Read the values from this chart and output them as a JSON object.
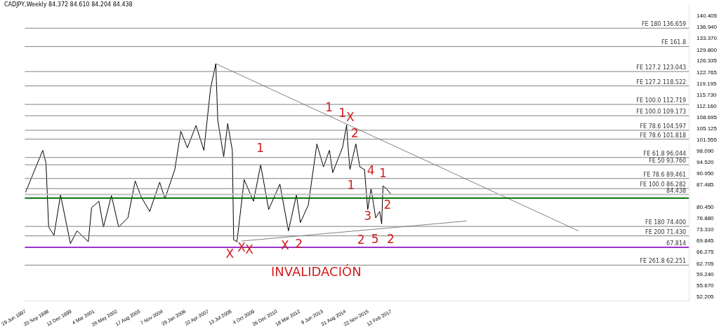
{
  "chart_data": {
    "type": "line",
    "title": "CADJPY,Weekly  84.372 84.610 84.204 84.438",
    "xlim": [
      "1997-06-15",
      "2033-02-01"
    ],
    "xticks": [
      {
        "value": "1997-06-29",
        "label": "29 Jun 1997"
      },
      {
        "value": "1998-09-20",
        "label": "20 Sep 1998"
      },
      {
        "value": "1999-12-12",
        "label": "12 Dec 1999"
      },
      {
        "value": "2001-03-04",
        "label": "4 Mar 2001"
      },
      {
        "value": "2002-05-26",
        "label": "26 May 2002"
      },
      {
        "value": "2003-08-17",
        "label": "17 Aug 2003"
      },
      {
        "value": "2004-11-07",
        "label": "7 Nov 2004"
      },
      {
        "value": "2006-01-29",
        "label": "29 Jan 2006"
      },
      {
        "value": "2007-04-22",
        "label": "22 Apr 2007"
      },
      {
        "value": "2008-07-13",
        "label": "13 Jul 2008"
      },
      {
        "value": "2009-10-04",
        "label": "4 Oct 2009"
      },
      {
        "value": "2010-12-26",
        "label": "26 Dec 2010"
      },
      {
        "value": "2012-03-18",
        "label": "18 Mar 2012"
      },
      {
        "value": "2013-06-09",
        "label": "9 Jun 2013"
      },
      {
        "value": "2014-08-31",
        "label": "31 Aug 2014"
      },
      {
        "value": "2015-11-22",
        "label": "22 Nov 2015"
      },
      {
        "value": "2017-02-12",
        "label": "12 Feb 2017"
      }
    ],
    "ylim": [
      51.0,
      143.8
    ],
    "yticks": [
      {
        "value": 52.205,
        "label": "52.205"
      },
      {
        "value": 55.67,
        "label": "55.670"
      },
      {
        "value": 59.24,
        "label": "59.240"
      },
      {
        "value": 62.705,
        "label": "62.705"
      },
      {
        "value": 66.275,
        "label": "66.275"
      },
      {
        "value": 69.845,
        "label": "69.845"
      },
      {
        "value": 73.31,
        "label": "73.310"
      },
      {
        "value": 76.88,
        "label": "76.880"
      },
      {
        "value": 80.45,
        "label": "80.450"
      },
      {
        "value": 87.485,
        "label": "87.485"
      },
      {
        "value": 90.95,
        "label": "90.950"
      },
      {
        "value": 94.52,
        "label": "94.520"
      },
      {
        "value": 98.09,
        "label": "98.090"
      },
      {
        "value": 101.555,
        "label": "101.555"
      },
      {
        "value": 105.125,
        "label": "105.125"
      },
      {
        "value": 108.695,
        "label": "108.695"
      },
      {
        "value": 112.16,
        "label": "112.160"
      },
      {
        "value": 115.73,
        "label": "115.730"
      },
      {
        "value": 119.195,
        "label": "119.195"
      },
      {
        "value": 122.765,
        "label": "122.765"
      },
      {
        "value": 126.335,
        "label": "126.335"
      },
      {
        "value": 129.8,
        "label": "129.800"
      },
      {
        "value": 133.37,
        "label": "133.370"
      },
      {
        "value": 136.94,
        "label": "136.940"
      },
      {
        "value": 140.405,
        "label": "140.405"
      }
    ],
    "grid": false,
    "legend": false,
    "marker": "none",
    "line_style": "solid",
    "series": [
      {
        "color": "#000000",
        "x": [
          "1997-06-29",
          "1998-06-01",
          "1998-08-04",
          "1998-09-25",
          "1999-01-07",
          "1999-05-16",
          "1999-11-26",
          "2000-04-04",
          "2000-11-10",
          "2001-01-14",
          "2001-06-05",
          "2001-09-04",
          "2002-02-06",
          "2002-06-29",
          "2002-12-27",
          "2003-05-18",
          "2003-09-12",
          "2004-02-27",
          "2004-09-09",
          "2004-12-21",
          "2005-07-03",
          "2005-10-28",
          "2006-03-06",
          "2006-08-22",
          "2007-01-24",
          "2007-06-03",
          "2007-09-14",
          "2007-10-23",
          "2008-02-16",
          "2008-05-04",
          "2008-08-03",
          "2008-08-29",
          "2008-11-02",
          "2009-03-24",
          "2009-09-21",
          "2010-02-10",
          "2010-07-16",
          "2011-02-21",
          "2011-08-08",
          "2012-01-11",
          "2012-03-29",
          "2012-08-31",
          "2013-02-15",
          "2013-06-24",
          "2013-10-19",
          "2013-12-23",
          "2014-07-05",
          "2014-09-21",
          "2014-10-17",
          "2014-11-25",
          "2015-03-21",
          "2015-06-07",
          "2015-09-06",
          "2015-11-09",
          "2016-01-13",
          "2016-04-13",
          "2016-06-30",
          "2016-08-08",
          "2016-09-03",
          "2016-11-07",
          "2017-02-12"
        ],
        "values": [
          85.1,
          98.3,
          94.3,
          74.2,
          71.6,
          84.3,
          69.0,
          73.0,
          69.6,
          80.3,
          82.3,
          74.2,
          84.1,
          74.2,
          77.1,
          88.7,
          83.7,
          79.1,
          88.3,
          83.1,
          92.3,
          104.3,
          99.1,
          106.1,
          98.3,
          117.7,
          125.5,
          107.7,
          96.3,
          106.7,
          98.3,
          70.2,
          69.6,
          89.1,
          82.3,
          93.7,
          79.7,
          87.7,
          73.0,
          84.3,
          75.6,
          81.1,
          100.3,
          93.1,
          98.3,
          91.3,
          99.3,
          106.3,
          99.7,
          92.3,
          100.3,
          93.1,
          92.3,
          79.7,
          86.3,
          77.1,
          79.1,
          75.2,
          87.1,
          86.3,
          84.4
        ]
      },
      {
        "type": "line",
        "color": "#808080",
        "x": [
          "2007-09-14",
          "2027-03-01"
        ],
        "values": [
          125.5,
          73.0
        ]
      },
      {
        "type": "line",
        "color": "#808080",
        "x": [
          "2009-02-01",
          "2021-03-01"
        ],
        "values": [
          69.8,
          76.1
        ]
      }
    ],
    "ref_lines": [
      {
        "axis": "y",
        "value": 136.659,
        "label": "FE 180 136.659",
        "color": "#808080"
      },
      {
        "axis": "y",
        "value": 130.9,
        "label": "FE 161.8",
        "color": "#808080"
      },
      {
        "axis": "y",
        "value": 123.043,
        "label": "FE 127.2 123.043",
        "color": "#808080"
      },
      {
        "axis": "y",
        "value": 118.522,
        "label": "FE 127.2 118.522",
        "color": "#808080"
      },
      {
        "axis": "y",
        "value": 112.719,
        "label": "FE 100.0 112.719",
        "color": "#808080"
      },
      {
        "axis": "y",
        "value": 109.173,
        "label": "FE 100.0 109.173",
        "color": "#808080"
      },
      {
        "axis": "y",
        "value": 104.597,
        "label": "FE 78.6 104.597",
        "color": "#808080"
      },
      {
        "axis": "y",
        "value": 101.818,
        "label": "FE 78.6 101.818",
        "color": "#808080"
      },
      {
        "axis": "y",
        "value": 96.044,
        "label": "FE 61.8 96.044",
        "color": "#808080"
      },
      {
        "axis": "y",
        "value": 93.76,
        "label": "FE 50 93.760",
        "color": "#808080"
      },
      {
        "axis": "y",
        "value": 89.461,
        "label": "FE 78.6 89.461",
        "color": "#808080"
      },
      {
        "axis": "y",
        "value": 86.282,
        "label": "FE 100.0 86.282",
        "color": "#808080"
      },
      {
        "axis": "y",
        "value": 74.4,
        "label": "FE 180 74.400",
        "color": "#808080"
      },
      {
        "axis": "y",
        "value": 71.43,
        "label": "FE 200 71.430",
        "color": "#808080"
      },
      {
        "axis": "y",
        "value": 62.251,
        "label": "FE 261.8 62.251",
        "color": "#808080"
      },
      {
        "axis": "y",
        "value": 84.438,
        "label": "84.438",
        "color": "#c0c0c0"
      },
      {
        "axis": "y",
        "value": 83.3,
        "color": "#007000"
      },
      {
        "axis": "y",
        "value": 67.814,
        "label": "67.814",
        "color": "#9932cc"
      }
    ],
    "annotations": [
      {
        "text": "1",
        "x": "2013-10-13",
        "y": 109.1
      },
      {
        "text": "1",
        "x": "2014-07-01",
        "y": 107.5
      },
      {
        "text": "X",
        "x": "2014-12-01",
        "y": 106.1
      },
      {
        "text": "1",
        "x": "2010-02-01",
        "y": 96.5
      },
      {
        "text": "X",
        "x": "2009-02-01",
        "y": 69.8
      },
      {
        "text": "X",
        "x": "2008-06-15",
        "y": 67.814
      },
      {
        "text": "X",
        "x": "2009-07-01",
        "y": 69.2
      },
      {
        "text": "X",
        "x": "2011-06-01",
        "y": 70.4
      },
      {
        "text": "2",
        "x": "2012-03-01",
        "y": 70.8
      },
      {
        "text": "2",
        "x": "2015-03-01",
        "y": 101.1
      },
      {
        "text": "1",
        "x": "2014-12-15",
        "y": 89.3
      },
      {
        "text": "4",
        "x": "2016-01-10",
        "y": 89.3
      },
      {
        "text": "3",
        "x": "2015-11-09",
        "y": 79.7
      },
      {
        "text": "5",
        "x": "2016-04-01",
        "y": 72.4
      },
      {
        "text": "2",
        "x": "2015-07-01",
        "y": 72.2
      },
      {
        "text": "2",
        "x": "2017-02-01",
        "y": 72.4
      },
      {
        "text": "1",
        "x": "2016-09-01",
        "y": 88.5
      },
      {
        "text": "2",
        "x": "2016-12-01",
        "y": 83.3
      },
      {
        "text": "INVALIDACIÓN",
        "x": "2013-02-01",
        "y": 62.2
      }
    ]
  }
}
